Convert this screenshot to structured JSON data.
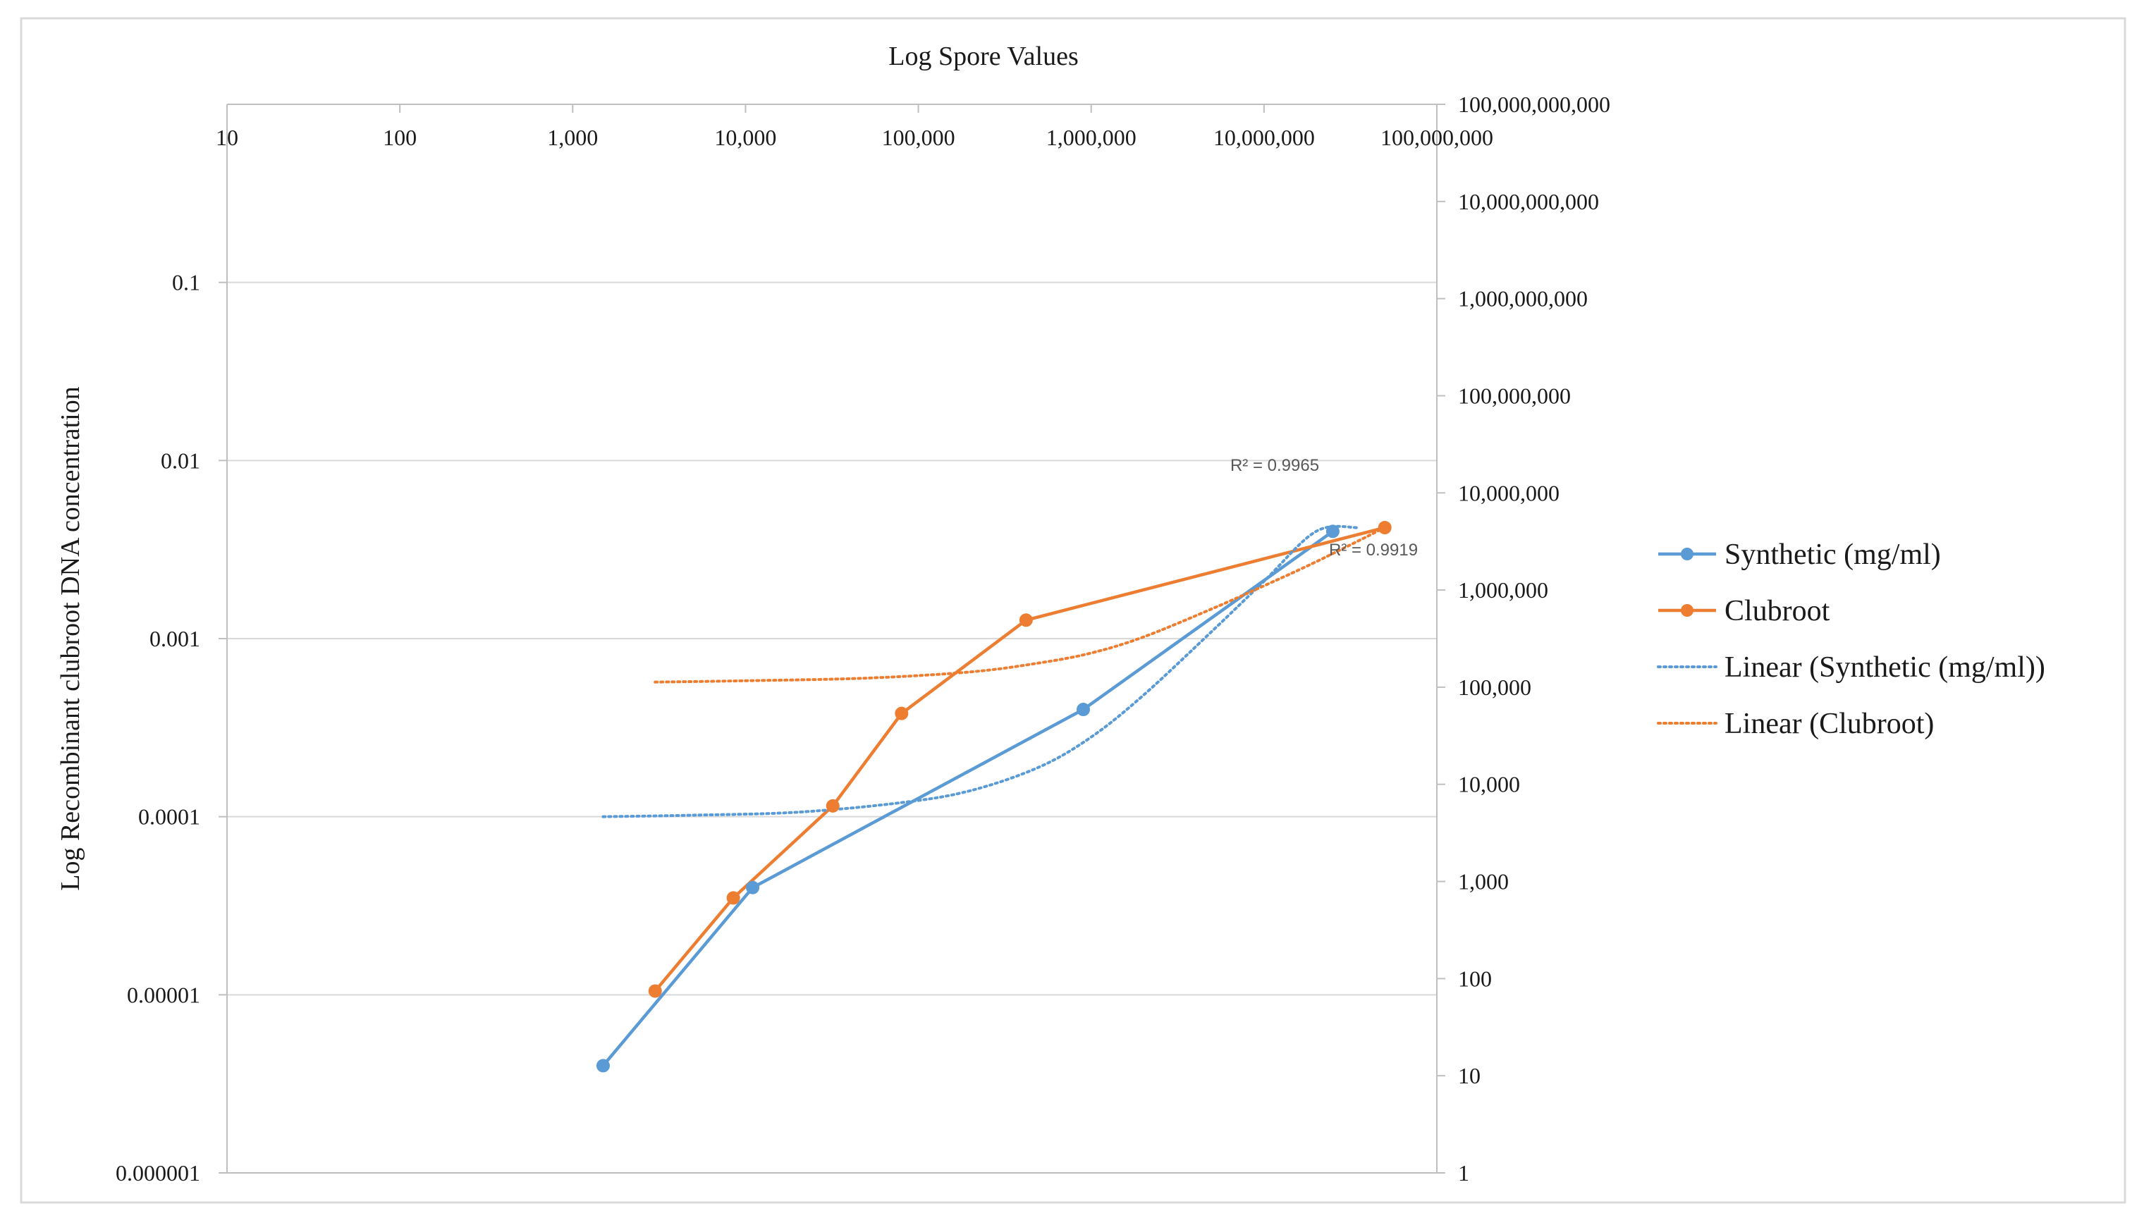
{
  "chart_data": {
    "type": "line",
    "title": "Log Spore Values",
    "xlabel": "",
    "ylabel": "Log Recombinant clubroot DNA concentration",
    "x_axis": {
      "scale": "log",
      "position": "top",
      "range": [
        10,
        100000000
      ],
      "tick_values": [
        10,
        100,
        1000,
        10000,
        100000,
        1000000,
        10000000,
        100000000
      ],
      "tick_labels": [
        "10",
        "100",
        "1,000",
        "10,000",
        "100,000",
        "1,000,000",
        "10,000,000",
        "100,000,000"
      ]
    },
    "y_left_axis": {
      "scale": "log",
      "range": [
        1e-06,
        1
      ],
      "tick_values": [
        0.1,
        0.01,
        0.001,
        0.0001,
        1e-05,
        1e-06
      ],
      "tick_labels": [
        "0.1",
        "0.01",
        "0.001",
        "0.0001",
        "0.00001",
        "0.000001"
      ]
    },
    "y_right_axis": {
      "scale": "log",
      "range": [
        1,
        100000000000
      ],
      "tick_values": [
        100000000000,
        10000000000,
        1000000000,
        100000000,
        10000000,
        1000000,
        100000,
        10000,
        1000,
        100,
        10,
        1
      ],
      "tick_labels": [
        "100,000,000,000",
        "10,000,000,000",
        "1,000,000,000",
        "100,000,000",
        "10,000,000",
        "1,000,000",
        "100,000",
        "10,000",
        "1,000",
        "100",
        "10",
        "1"
      ]
    },
    "grid": true,
    "legend_position": "right",
    "series": [
      {
        "name": "Synthetic  (mg/ml)",
        "style": "solid",
        "marker": "circle",
        "color": "#5B9BD5",
        "x": [
          1500,
          11000,
          900000,
          25000000
        ],
        "y": [
          4e-06,
          4e-05,
          0.0004,
          0.004
        ]
      },
      {
        "name": "Clubroot",
        "style": "solid",
        "marker": "circle",
        "color": "#ED7D31",
        "x": [
          3000,
          8500,
          32000,
          80000,
          420000,
          50000000
        ],
        "y": [
          1.05e-05,
          3.5e-05,
          0.000115,
          0.00038,
          0.00127,
          0.0042
        ]
      },
      {
        "name": "Linear (Synthetic  (mg/ml))",
        "style": "dotted",
        "color": "#5B9BD5",
        "trendline_of": "Synthetic  (mg/ml)",
        "r_squared_label": "R² = 0.9965",
        "x": [
          1500,
          5000,
          20000,
          80000,
          200000,
          500000,
          1000000,
          2000000,
          5000000,
          10000000,
          20000000,
          35000000
        ],
        "y": [
          0.0001,
          0.000102,
          0.000106,
          0.00012,
          0.00014,
          0.00019,
          0.00028,
          0.00048,
          0.0011,
          0.0021,
          0.004,
          0.0042
        ]
      },
      {
        "name": "Linear (Clubroot)",
        "style": "dotted",
        "color": "#ED7D31",
        "trendline_of": "Clubroot",
        "r_squared_label": "R² = 0.9919",
        "x": [
          3000,
          10000,
          50000,
          200000,
          500000,
          1000000,
          2000000,
          5000000,
          10000000,
          20000000,
          50000000
        ],
        "y": [
          0.00057,
          0.00058,
          0.0006,
          0.00065,
          0.00073,
          0.00083,
          0.00102,
          0.00147,
          0.00198,
          0.0027,
          0.0042
        ]
      }
    ]
  }
}
